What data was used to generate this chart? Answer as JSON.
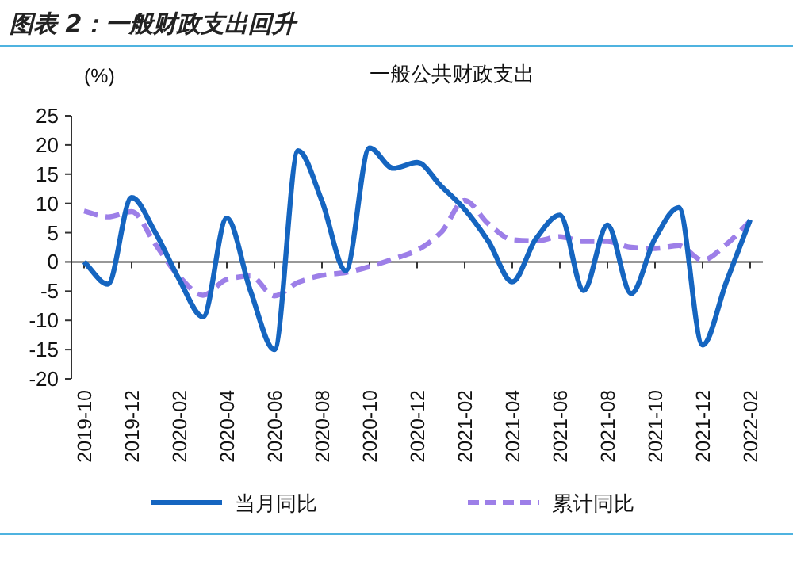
{
  "chart_data": {
    "type": "line",
    "title": "图表 2：一般财政支出回升",
    "subtitle": "一般公共财政支出",
    "ylabel": "(%)",
    "categories": [
      "2019-10",
      null,
      "2019-12",
      null,
      "2020-02",
      null,
      "2020-04",
      null,
      "2020-06",
      null,
      "2020-08",
      null,
      "2020-10",
      null,
      "2020-12",
      null,
      "2021-02",
      null,
      "2021-04",
      null,
      "2021-06",
      null,
      "2021-08",
      null,
      "2021-10",
      null,
      "2021-12",
      null,
      "2022-02"
    ],
    "series": [
      {
        "name": "当月同比",
        "color": "#1565c0",
        "line_style": "solid",
        "values": [
          0,
          -3.8,
          11,
          5,
          -3,
          -9.4,
          7.5,
          -5,
          -15,
          19,
          10.4,
          -1.5,
          19.5,
          16,
          17,
          13,
          9,
          3.5,
          -3.4,
          4,
          8,
          -4.9,
          6.3,
          -5.4,
          4,
          9.3,
          -14.2,
          -3.4,
          7.2
        ]
      },
      {
        "name": "累计同比",
        "color": "#9d7fe8",
        "line_style": "dashed",
        "values": [
          8.7,
          7.7,
          8.6,
          3,
          -2.5,
          -5.7,
          -3,
          -2.4,
          -5.8,
          -3.5,
          -2.3,
          -1.8,
          -0.8,
          0.5,
          2,
          5,
          10.5,
          6.5,
          3.8,
          3.6,
          4.3,
          3.5,
          3.5,
          2.5,
          2.3,
          2.8,
          0.3,
          3,
          7
        ]
      }
    ],
    "ylim": [
      -20,
      25
    ],
    "yticks": [
      -20,
      -15,
      -10,
      -5,
      0,
      5,
      10,
      15,
      20,
      25
    ],
    "legend": "bottom",
    "marker": "none"
  }
}
